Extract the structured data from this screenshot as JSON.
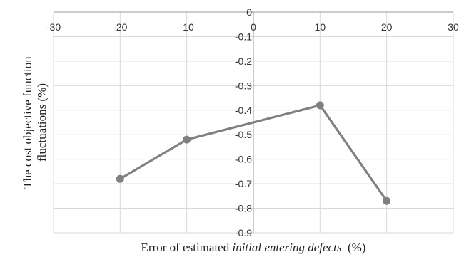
{
  "chart_data": {
    "type": "line",
    "x": [
      -20,
      -10,
      10,
      20
    ],
    "series": [
      {
        "values": [
          -0.68,
          -0.52,
          -0.38,
          -0.77
        ]
      }
    ],
    "xlim": [
      -30,
      30
    ],
    "ylim": [
      -0.9,
      0
    ],
    "x_ticks": [
      -30,
      -20,
      -10,
      0,
      10,
      20,
      30
    ],
    "y_ticks": [
      0,
      -0.1,
      -0.2,
      -0.3,
      -0.4,
      -0.5,
      -0.6,
      -0.7,
      -0.8,
      -0.9
    ],
    "x_tick_labels": [
      "-30",
      "-20",
      "-10",
      "0",
      "10",
      "20",
      "30"
    ],
    "y_tick_labels": [
      "0",
      "-0.1",
      "-0.2",
      "-0.3",
      "-0.4",
      "-0.5",
      "-0.6",
      "-0.7",
      "-0.8",
      "-0.9"
    ],
    "xlabel": {
      "prefix": "Error of estimated ",
      "emphasis": "initial entering defects",
      "suffix": "  (%)"
    },
    "ylabel": [
      "The cost objective function",
      "fluctuations (%)"
    ],
    "grid": true,
    "line_color": "#808080",
    "marker_color": "#808080"
  }
}
